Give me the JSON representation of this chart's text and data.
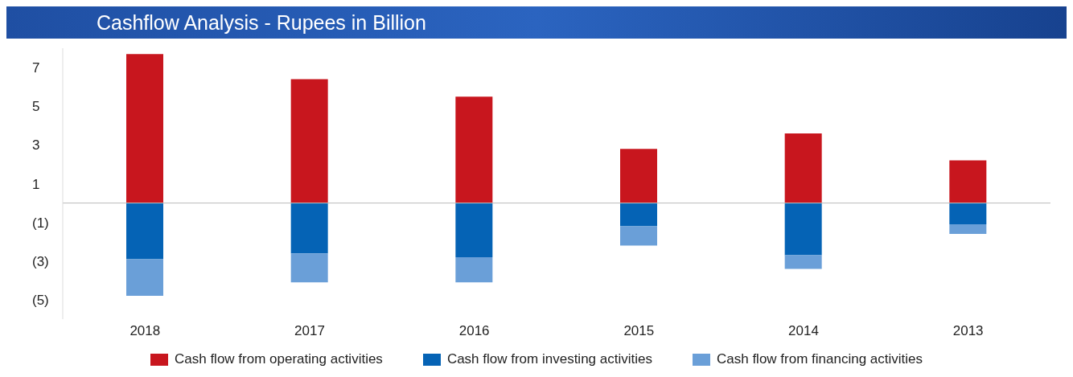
{
  "chart_data": {
    "type": "bar",
    "title": "Cashflow Analysis - Rupees in Billion",
    "categories": [
      "2018",
      "2017",
      "2016",
      "2015",
      "2014",
      "2013"
    ],
    "stacked": true,
    "series": [
      {
        "name": "Cash flow from operating activities",
        "color": "#c8161e",
        "values": [
          7.7,
          6.4,
          5.5,
          2.8,
          3.6,
          2.2
        ]
      },
      {
        "name": "Cash flow from investing activities",
        "color": "#0563b5",
        "values": [
          -2.9,
          -2.6,
          -2.8,
          -1.2,
          -2.7,
          -1.1
        ]
      },
      {
        "name": "Cash flow from financing activities",
        "color": "#6a9fd8",
        "values": [
          -1.9,
          -1.5,
          -1.3,
          -1.0,
          -0.7,
          -0.5
        ]
      }
    ],
    "ylim": [
      -6,
      8
    ],
    "yticks": [
      {
        "value": -5,
        "label": "(5)"
      },
      {
        "value": -3,
        "label": "(3)"
      },
      {
        "value": -1,
        "label": "(1)"
      },
      1,
      3,
      5,
      7
    ],
    "legend": "bottom"
  }
}
